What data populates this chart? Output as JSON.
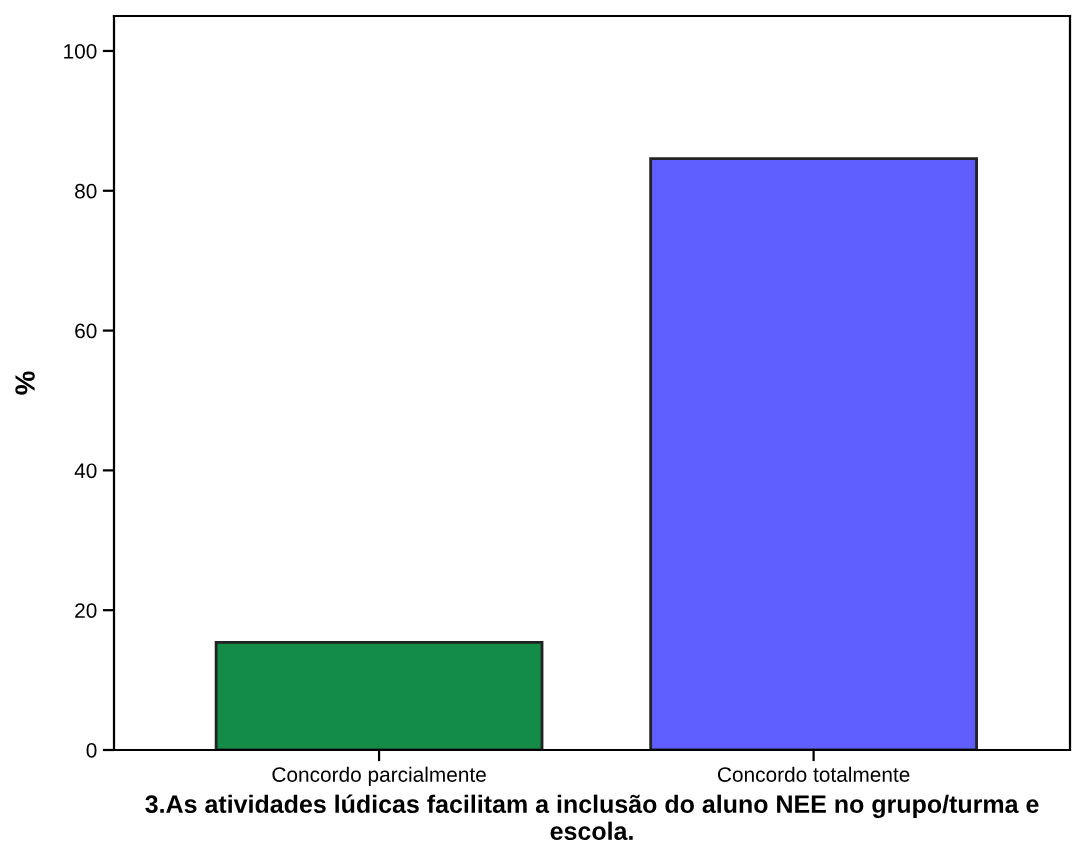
{
  "chart_data": {
    "type": "bar",
    "xlabel": "3.As atividades lúdicas facilitam a inclusão do aluno NEE no grupo/turma e escola.",
    "ylabel": "%",
    "categories": [
      "Concordo parcialmente",
      "Concordo totalmente"
    ],
    "values": [
      15.4,
      84.6
    ],
    "colors": [
      "#128c46",
      "#5e5ffe"
    ],
    "ylim": [
      0,
      105
    ],
    "yticks": [
      0,
      20,
      40,
      60,
      80,
      100
    ],
    "grid": false,
    "legend": false
  }
}
